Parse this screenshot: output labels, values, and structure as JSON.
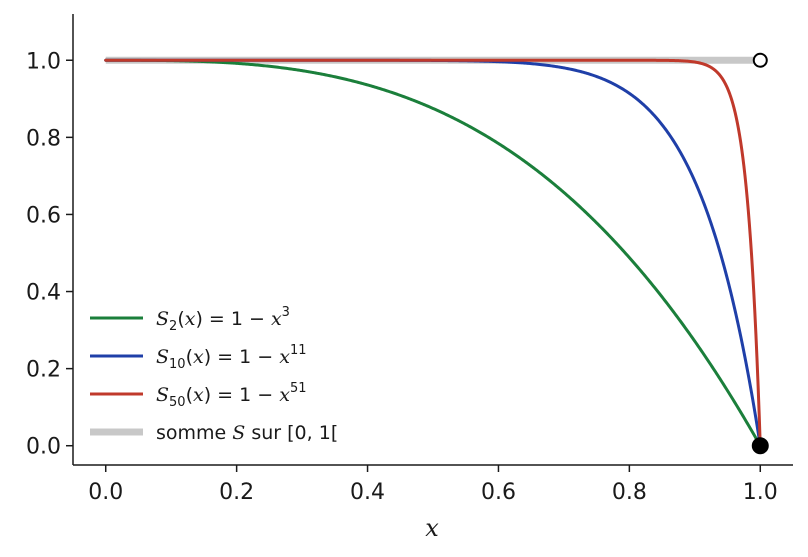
{
  "chart_data": {
    "type": "line",
    "xlabel": "x",
    "ylabel": "",
    "xlim": [
      -0.05,
      1.05
    ],
    "ylim": [
      -0.05,
      1.12
    ],
    "grid": false,
    "xticks": [
      0.0,
      0.2,
      0.4,
      0.6,
      0.8,
      1.0
    ],
    "yticks": [
      0.0,
      0.2,
      0.4,
      0.6,
      0.8,
      1.0
    ],
    "xtick_labels": [
      "0.0",
      "0.2",
      "0.4",
      "0.6",
      "0.8",
      "1.0"
    ],
    "ytick_labels": [
      "0.0",
      "0.2",
      "0.4",
      "0.6",
      "0.8",
      "1.0"
    ],
    "legend_position": "lower-left",
    "series": [
      {
        "name": "S_2(x) = 1 − x^3",
        "legend": {
          "sym": "S",
          "sub": "2",
          "var": "x",
          "rhs": "= 1 − ",
          "base": "x",
          "sup": "3"
        },
        "exponent": 3,
        "color": "#1b7f3b",
        "x": [
          0,
          0.1,
          0.2,
          0.3,
          0.4,
          0.5,
          0.6,
          0.7,
          0.8,
          0.9,
          1.0
        ],
        "y": [
          1.0,
          0.999,
          0.992,
          0.973,
          0.936,
          0.875,
          0.784,
          0.657,
          0.488,
          0.271,
          0.0
        ]
      },
      {
        "name": "S_10(x) = 1 − x^11",
        "legend": {
          "sym": "S",
          "sub": "10",
          "var": "x",
          "rhs": "= 1 − ",
          "base": "x",
          "sup": "11"
        },
        "exponent": 11,
        "color": "#1f3fa8",
        "x": [
          0,
          0.5,
          0.6,
          0.7,
          0.8,
          0.85,
          0.9,
          0.95,
          1.0
        ],
        "y": [
          1.0,
          1.0,
          0.996,
          0.98,
          0.914,
          0.833,
          0.686,
          0.431,
          0.0
        ]
      },
      {
        "name": "S_50(x) = 1 − x^51",
        "legend": {
          "sym": "S",
          "sub": "50",
          "var": "x",
          "rhs": "= 1 − ",
          "base": "x",
          "sup": "51"
        },
        "exponent": 51,
        "color": "#c0392b",
        "x": [
          0,
          0.9,
          0.93,
          0.95,
          0.97,
          0.98,
          0.99,
          1.0
        ],
        "y": [
          1.0,
          0.995,
          0.975,
          0.927,
          0.789,
          0.644,
          0.401,
          0.0
        ]
      },
      {
        "name": "somme S sur [0, 1[",
        "legend": {
          "pre": "somme ",
          "italic": "S",
          "post": " sur [0, 1["
        },
        "color": "#c8c8c8",
        "x": [
          0.0,
          1.0
        ],
        "y": [
          1.0,
          1.0
        ]
      }
    ],
    "markers": [
      {
        "name": "open-circle",
        "x": 1.0,
        "y": 1.0,
        "filled": false
      },
      {
        "name": "filled-circle",
        "x": 1.0,
        "y": 0.0,
        "filled": true
      }
    ]
  }
}
